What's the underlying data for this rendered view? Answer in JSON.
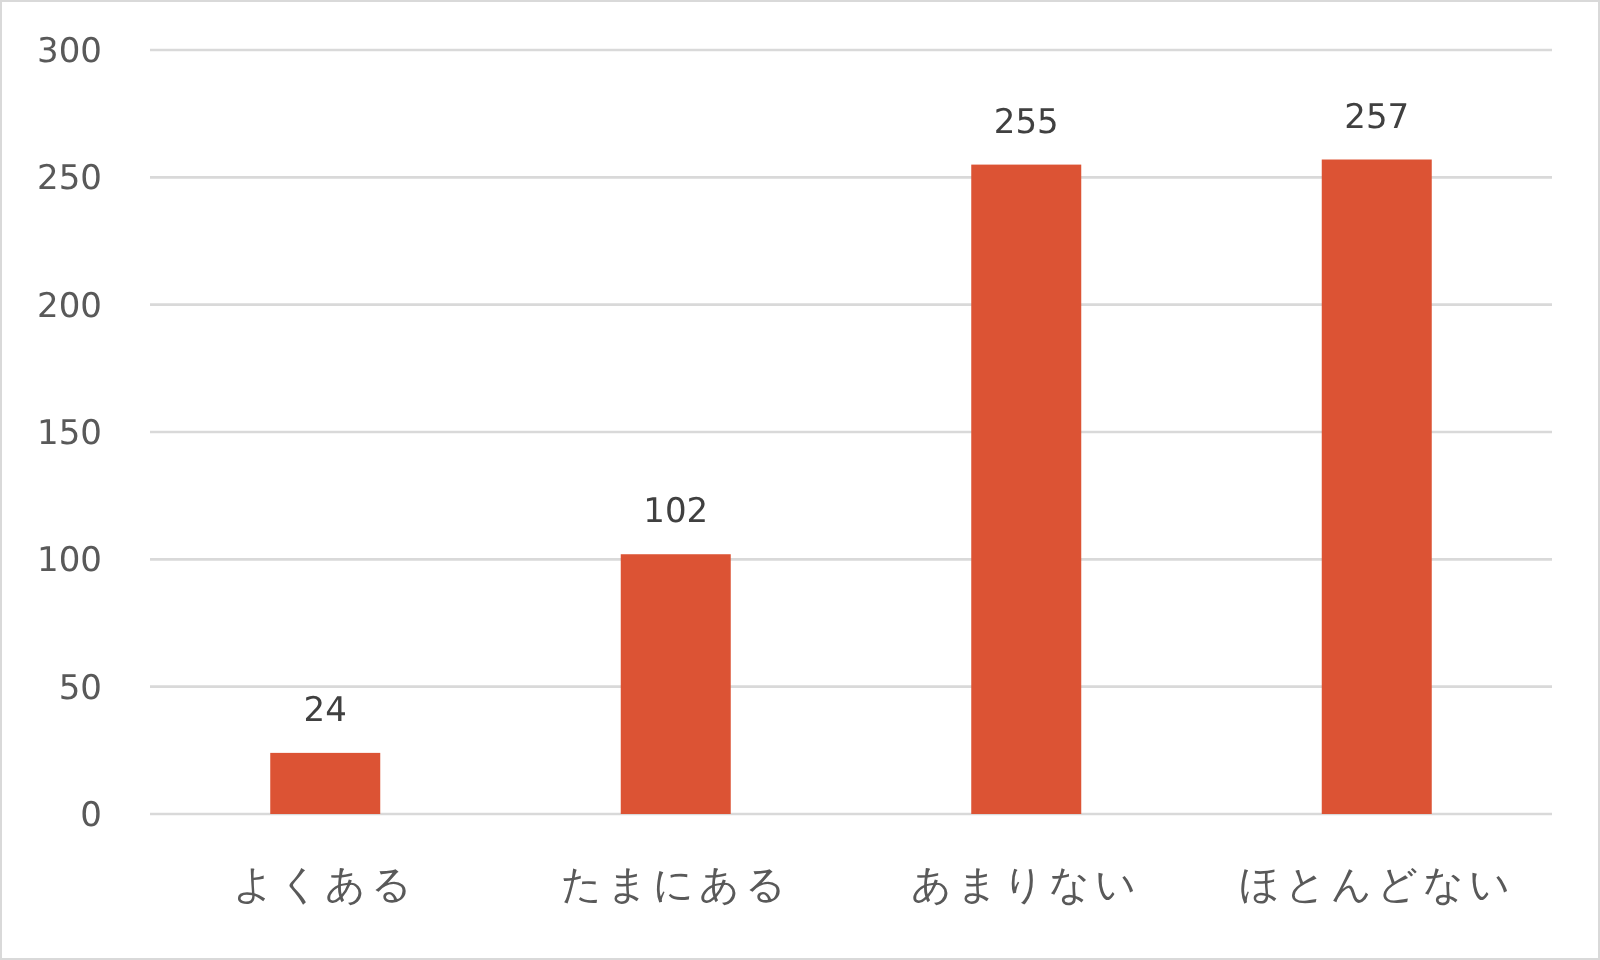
{
  "chart_data": {
    "type": "bar",
    "categories": [
      "よくある",
      "たまにある",
      "あまりない",
      "ほとんどない"
    ],
    "values": [
      24,
      102,
      255,
      257
    ],
    "color": "#dc5334",
    "ylim": [
      0,
      300
    ],
    "yticks": [
      0,
      50,
      100,
      150,
      200,
      250,
      300
    ],
    "grid": "y",
    "data_labels": true
  }
}
